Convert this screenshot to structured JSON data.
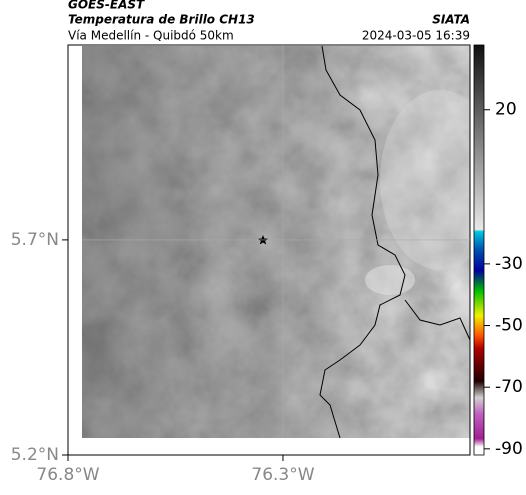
{
  "header": {
    "title": "GOES-EAST",
    "subtitle": "Temperatura de Brillo CH13",
    "route": "Vía Medellín - Quibdó 50km",
    "source": "SIATA",
    "timestamp": "2024-03-05 16:39"
  },
  "map": {
    "latlim": [
      5.2,
      6.153
    ],
    "lonlim": [
      -76.8,
      -75.865
    ],
    "lat_ticks": [
      {
        "value": 5.7,
        "label": "5.7°N"
      },
      {
        "value": 5.2,
        "label": "5.2°N"
      }
    ],
    "lon_ticks": [
      {
        "value": -76.8,
        "label": "76.8°W"
      },
      {
        "value": -76.3,
        "label": "76.3°W"
      }
    ],
    "grid": true
  },
  "colorbar": {
    "range": [
      41,
      -92
    ],
    "ticks": [
      20,
      -30,
      -50,
      -70,
      -90
    ]
  }
}
